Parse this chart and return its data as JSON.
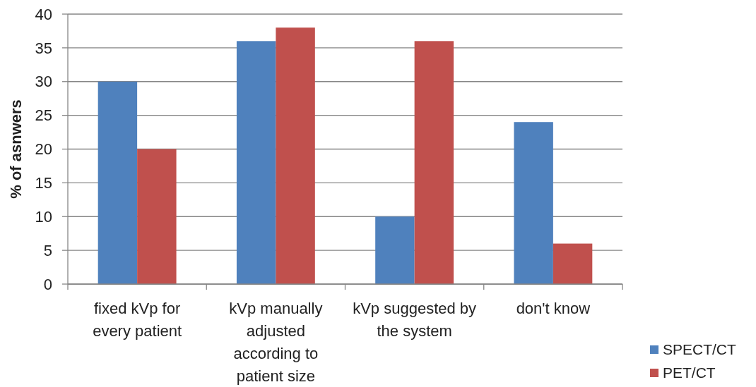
{
  "chart_data": {
    "type": "bar",
    "ylabel": "% of asnwers",
    "categories": [
      "fixed kVp for every patient",
      "kVp manually adjusted according to patient size",
      "kVp suggested by the system",
      "don't know"
    ],
    "series": [
      {
        "name": "SPECT/CT",
        "color": "#4f81bd",
        "values": [
          30,
          36,
          10,
          24
        ]
      },
      {
        "name": "PET/CT",
        "color": "#c0504d",
        "values": [
          20,
          38,
          36,
          6
        ]
      }
    ],
    "ylim": [
      0,
      40
    ],
    "yticks": [
      0,
      5,
      10,
      15,
      20,
      25,
      30,
      35,
      40
    ],
    "grid": "y",
    "legend": "bottom right"
  }
}
